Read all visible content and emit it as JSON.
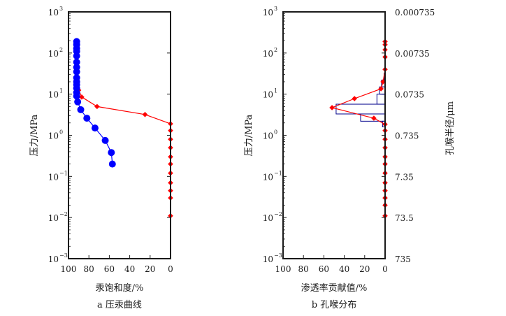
{
  "chart_data": [
    {
      "type": "scatter",
      "caption": "a 压汞曲线",
      "xlabel": "汞饱和度/%",
      "ylabel": "压力/MPa",
      "x_reversed": true,
      "xlim": [
        100,
        0
      ],
      "xticks": [
        100,
        80,
        60,
        40,
        20,
        0
      ],
      "y_scale": "log",
      "ylim": [
        0.001,
        1000
      ],
      "ytick_exponents": [
        -3,
        -2,
        -1,
        0,
        1,
        2,
        3
      ],
      "ytick_base": "10",
      "series": [
        {
          "role": "intrusion",
          "color": "#ff0000",
          "marker": "diamond",
          "x": [
            90,
            87,
            72,
            25,
            0,
            0,
            0,
            0,
            0,
            0,
            0,
            0,
            0,
            0,
            0
          ],
          "y": [
            12.5,
            8.5,
            5.0,
            3.2,
            1.9,
            1.3,
            0.8,
            0.5,
            0.3,
            0.2,
            0.12,
            0.07,
            0.045,
            0.03,
            0.011
          ]
        },
        {
          "role": "extrusion",
          "color": "#0000ff",
          "marker": "circle",
          "x": [
            92,
            92,
            92,
            92,
            92,
            92,
            92,
            92,
            92,
            92,
            92,
            92,
            92,
            92,
            91,
            88,
            82,
            74,
            64,
            58,
            57
          ],
          "y": [
            190,
            160,
            130,
            110,
            85,
            60,
            45,
            35,
            25,
            20,
            17,
            14,
            11,
            9,
            6.5,
            4.2,
            2.6,
            1.5,
            0.75,
            0.38,
            0.2
          ]
        }
      ]
    },
    {
      "type": "bar",
      "caption": "b 孔喉分布",
      "xlabel": "渗透率贡献值/%",
      "ylabel": "压力/MPa",
      "y2label": "孔喉半径/μm",
      "x_reversed": true,
      "xlim": [
        100,
        0
      ],
      "xticks": [
        100,
        80,
        60,
        40,
        20,
        0
      ],
      "y_scale": "log",
      "ylim": [
        0.001,
        1000
      ],
      "ytick_exponents": [
        -3,
        -2,
        -1,
        0,
        1,
        2,
        3
      ],
      "ytick_base": "10",
      "y2_ticks": [
        {
          "pressure": 1000,
          "label": "0.000735"
        },
        {
          "pressure": 100,
          "label": "0.00735"
        },
        {
          "pressure": 10,
          "label": "0.0735"
        },
        {
          "pressure": 1,
          "label": "0.735"
        },
        {
          "pressure": 0.1,
          "label": "7.35"
        },
        {
          "pressure": 0.01,
          "label": "73.5"
        },
        {
          "pressure": 0.001,
          "label": "735"
        }
      ],
      "bars": [
        {
          "y_low": 22,
          "y_high": 32,
          "value": 1.0
        },
        {
          "y_low": 15,
          "y_high": 22,
          "value": 3.5
        },
        {
          "y_low": 10,
          "y_high": 15,
          "value": 5.5
        },
        {
          "y_low": 5.7,
          "y_high": 10,
          "value": 8.0
        },
        {
          "y_low": 3.3,
          "y_high": 5.7,
          "value": 48.0
        },
        {
          "y_low": 2.2,
          "y_high": 3.3,
          "value": 24.0
        },
        {
          "y_low": 1.6,
          "y_high": 2.2,
          "value": 2.5
        }
      ],
      "series": [
        {
          "role": "contribution",
          "color": "#ff0000",
          "marker": "diamond",
          "x": [
            0,
            0,
            0,
            0,
            0,
            2,
            4,
            30,
            52,
            11,
            0,
            0,
            0,
            0,
            0,
            0,
            0,
            0,
            0,
            0,
            0,
            0
          ],
          "y": [
            190,
            160,
            120,
            80,
            40,
            20,
            13.5,
            7.8,
            4.7,
            2.6,
            1.85,
            1.3,
            0.8,
            0.5,
            0.3,
            0.2,
            0.12,
            0.07,
            0.045,
            0.03,
            0.02,
            0.011
          ]
        }
      ]
    }
  ]
}
